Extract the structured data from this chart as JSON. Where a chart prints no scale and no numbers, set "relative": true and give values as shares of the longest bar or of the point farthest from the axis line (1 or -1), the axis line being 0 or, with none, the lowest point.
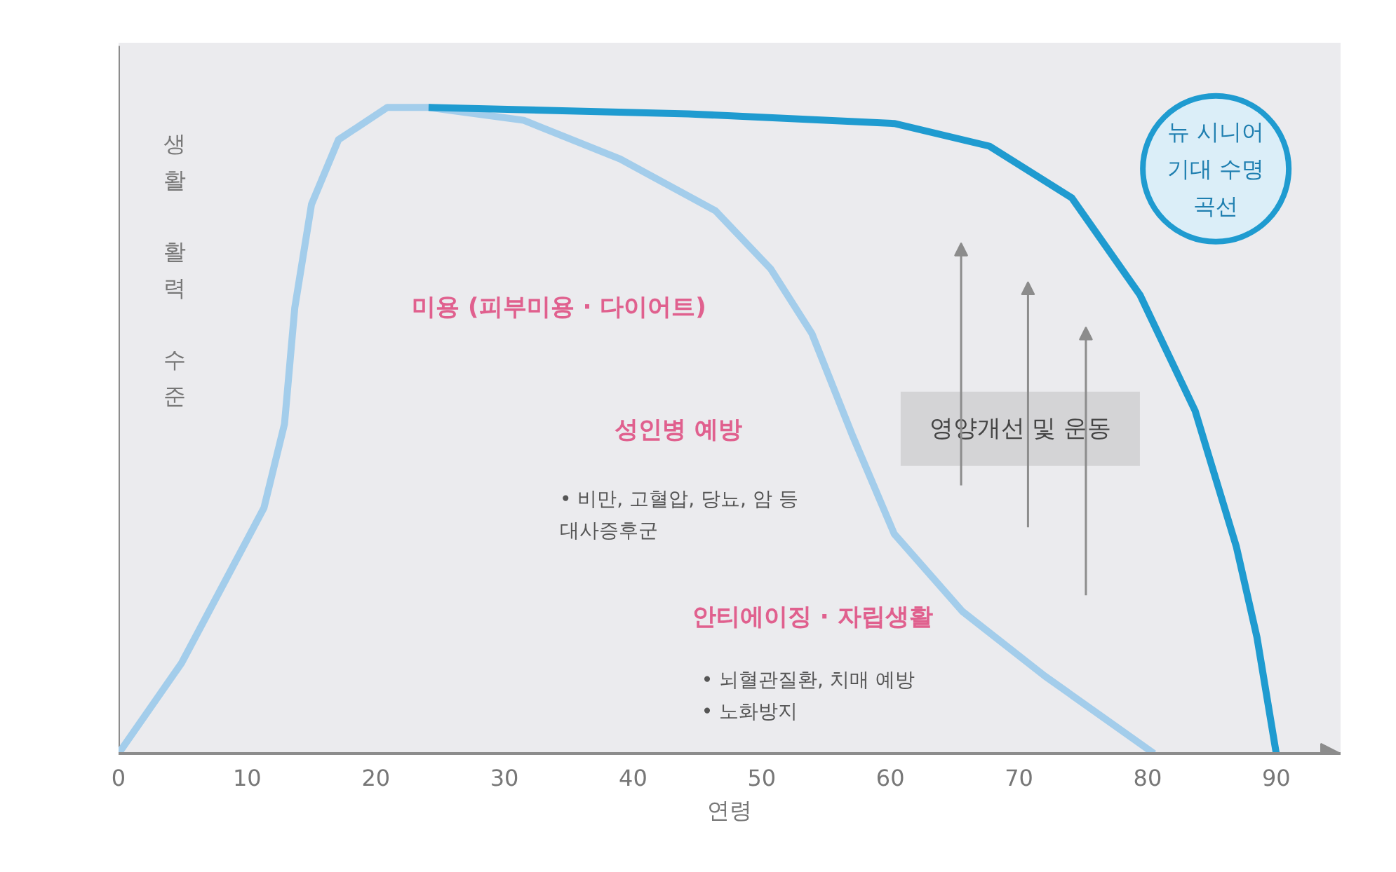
{
  "chart_data": {
    "type": "line",
    "relative": true,
    "xlabel": "연령",
    "ylabel": "생활 활력 수준",
    "xlim": [
      0,
      95
    ],
    "xticks": [
      0,
      10,
      20,
      30,
      40,
      50,
      60,
      70,
      80,
      90
    ],
    "series": [
      {
        "color": "#a3cdeb",
        "x": [
          0,
          4.9,
          11.3,
          12.9,
          13.7,
          15.0,
          17.1,
          20.9,
          24.1,
          31.5,
          39,
          46.4,
          50.7,
          53.9,
          57.1,
          60.3,
          65.6,
          72,
          80.5
        ],
        "values": [
          0,
          0.14,
          0.38,
          0.51,
          0.69,
          0.85,
          0.95,
          1.0,
          1.0,
          0.98,
          0.92,
          0.84,
          0.75,
          0.65,
          0.49,
          0.34,
          0.22,
          0.12,
          0
        ]
      },
      {
        "color": "#1f9bd0",
        "x": [
          24.1,
          44.3,
          60.3,
          67.7,
          74.1,
          79.4,
          83.7,
          86.9,
          88.5,
          90
        ],
        "values": [
          1.0,
          0.99,
          0.975,
          0.94,
          0.86,
          0.71,
          0.53,
          0.32,
          0.18,
          0
        ]
      }
    ],
    "annotations": [
      "미용 (피부미용 · 다이어트)",
      "성인병 예방",
      "안티에이징 · 자립생활",
      "• 비만, 고혈압, 당뇨, 암 등\n   대사증후군",
      "• 뇌혈관질환, 치매 예방\n• 노화방지",
      "영양개선 및 운동",
      "뉴 시니어\n기대 수명\n곡선"
    ]
  }
}
